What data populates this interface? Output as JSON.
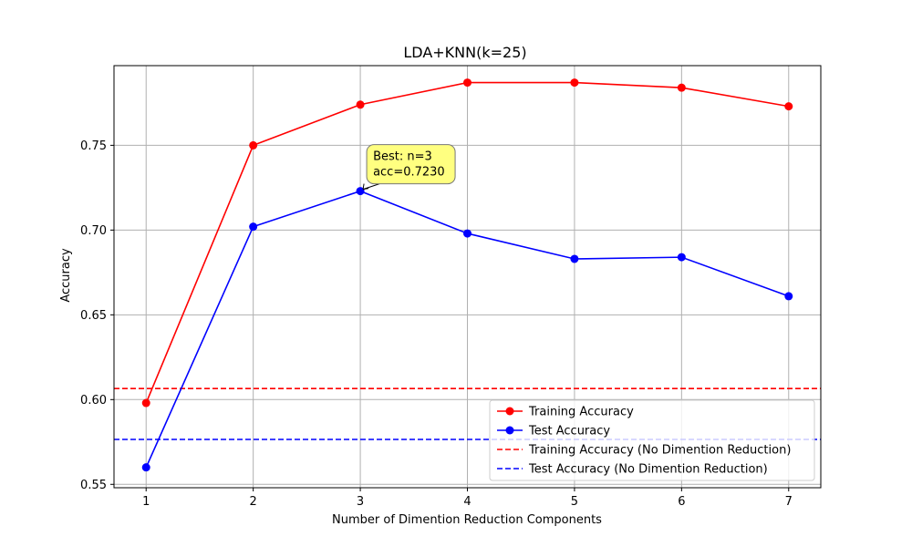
{
  "chart_data": {
    "type": "line",
    "title": "LDA+KNN(k=25)",
    "xlabel": "Number of Dimention Reduction Components",
    "ylabel": "Accuracy",
    "x": [
      1,
      2,
      3,
      4,
      5,
      6,
      7
    ],
    "xticks": [
      "1",
      "2",
      "3",
      "4",
      "5",
      "6",
      "7"
    ],
    "yticks": [
      0.55,
      0.6,
      0.65,
      0.7,
      0.75
    ],
    "ytick_labels": [
      "0.55",
      "0.60",
      "0.65",
      "0.70",
      "0.75"
    ],
    "xlim": [
      0.7,
      7.3
    ],
    "ylim": [
      0.548,
      0.797
    ],
    "grid": true,
    "legend_position": "lower-right",
    "series": [
      {
        "name": "Training Accuracy",
        "color": "#ff0000",
        "style": "solid-marker",
        "values": [
          0.598,
          0.75,
          0.774,
          0.787,
          0.787,
          0.784,
          0.773
        ]
      },
      {
        "name": "Test Accuracy",
        "color": "#0000ff",
        "style": "solid-marker",
        "values": [
          0.56,
          0.702,
          0.723,
          0.698,
          0.683,
          0.684,
          0.661
        ]
      }
    ],
    "reference_lines": [
      {
        "name": "Training Accuracy (No Dimention Reduction)",
        "color": "#ff0000",
        "style": "dashed",
        "y": 0.6065
      },
      {
        "name": "Test Accuracy (No Dimention Reduction)",
        "color": "#0000ff",
        "style": "dashed",
        "y": 0.5765
      }
    ],
    "annotation": {
      "lines": [
        "Best: n=3",
        "acc=0.7230"
      ],
      "x": 3,
      "y": 0.723,
      "box_color": "#ffff80"
    }
  }
}
